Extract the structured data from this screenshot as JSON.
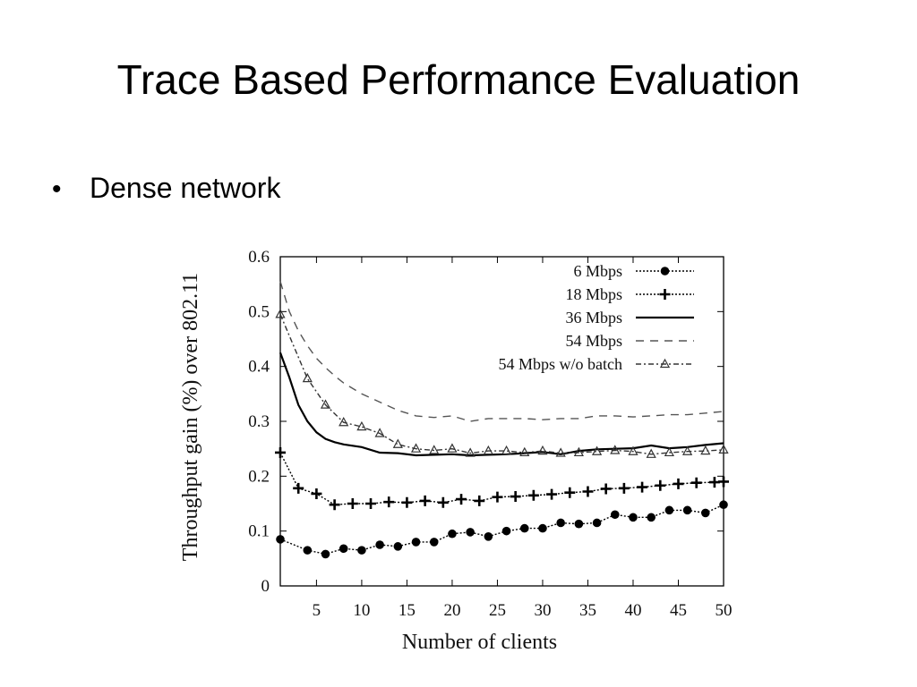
{
  "slide": {
    "title": "Trace Based Performance Evaluation",
    "bullet": "Dense network"
  },
  "chart_data": {
    "type": "line",
    "xlabel": "Number of clients",
    "ylabel": "Throughput gain (%) over 802.11",
    "xlim": [
      1,
      50
    ],
    "ylim": [
      0,
      0.6
    ],
    "xticks": [
      5,
      10,
      15,
      20,
      25,
      30,
      35,
      40,
      45,
      50
    ],
    "yticks": [
      0,
      0.1,
      0.2,
      0.3,
      0.4,
      0.5,
      0.6
    ],
    "ytick_labels": [
      "0",
      "0.1",
      "0.2",
      "0.3",
      "0.4",
      "0.5",
      "0.6"
    ],
    "grid": false,
    "legend_position": "top-right",
    "series": [
      {
        "name": "6 Mbps",
        "color": "#000000",
        "line_style": "dotted",
        "marker": "circle",
        "x": [
          1,
          4,
          6,
          8,
          10,
          12,
          14,
          16,
          18,
          20,
          22,
          24,
          26,
          28,
          30,
          32,
          34,
          36,
          38,
          40,
          42,
          44,
          46,
          48,
          50
        ],
        "y": [
          0.085,
          0.065,
          0.058,
          0.068,
          0.065,
          0.075,
          0.072,
          0.08,
          0.08,
          0.095,
          0.098,
          0.09,
          0.1,
          0.105,
          0.105,
          0.115,
          0.113,
          0.115,
          0.13,
          0.125,
          0.125,
          0.138,
          0.138,
          0.133,
          0.148
        ]
      },
      {
        "name": "18 Mbps",
        "color": "#000000",
        "line_style": "dotted",
        "marker": "plus",
        "x": [
          1,
          3,
          5,
          7,
          9,
          11,
          13,
          15,
          17,
          19,
          21,
          23,
          25,
          27,
          29,
          31,
          33,
          35,
          37,
          39,
          41,
          43,
          45,
          47,
          49,
          50
        ],
        "y": [
          0.243,
          0.178,
          0.168,
          0.148,
          0.15,
          0.15,
          0.153,
          0.152,
          0.155,
          0.152,
          0.158,
          0.155,
          0.162,
          0.163,
          0.165,
          0.167,
          0.17,
          0.172,
          0.177,
          0.178,
          0.18,
          0.183,
          0.186,
          0.188,
          0.189,
          0.19
        ]
      },
      {
        "name": "36 Mbps",
        "color": "#000000",
        "line_style": "solid",
        "marker": "none",
        "x": [
          1,
          2,
          3,
          4,
          5,
          6,
          7,
          8,
          10,
          12,
          14,
          16,
          18,
          20,
          22,
          24,
          26,
          28,
          30,
          32,
          34,
          36,
          38,
          40,
          42,
          44,
          46,
          48,
          50
        ],
        "y": [
          0.425,
          0.38,
          0.33,
          0.3,
          0.28,
          0.268,
          0.262,
          0.258,
          0.253,
          0.243,
          0.242,
          0.238,
          0.239,
          0.24,
          0.238,
          0.239,
          0.24,
          0.242,
          0.244,
          0.24,
          0.246,
          0.249,
          0.25,
          0.251,
          0.256,
          0.251,
          0.253,
          0.257,
          0.26
        ]
      },
      {
        "name": "54 Mbps",
        "color": "#555555",
        "line_style": "dashed",
        "marker": "none",
        "x": [
          1,
          2,
          3,
          4,
          5,
          6,
          7,
          8,
          10,
          12,
          14,
          16,
          18,
          20,
          22,
          24,
          26,
          28,
          30,
          32,
          34,
          36,
          38,
          40,
          42,
          44,
          46,
          48,
          50
        ],
        "y": [
          0.555,
          0.5,
          0.465,
          0.438,
          0.415,
          0.398,
          0.383,
          0.37,
          0.35,
          0.335,
          0.32,
          0.31,
          0.307,
          0.31,
          0.3,
          0.305,
          0.305,
          0.305,
          0.303,
          0.305,
          0.305,
          0.31,
          0.31,
          0.308,
          0.31,
          0.312,
          0.312,
          0.315,
          0.318
        ]
      },
      {
        "name": "54 Mbps w/o batch",
        "color": "#333333",
        "line_style": "dashdot",
        "marker": "triangle",
        "x": [
          1,
          4,
          6,
          8,
          10,
          12,
          14,
          16,
          18,
          20,
          22,
          24,
          26,
          28,
          30,
          32,
          34,
          36,
          38,
          40,
          42,
          44,
          46,
          48,
          50
        ],
        "y": [
          0.495,
          0.378,
          0.33,
          0.298,
          0.29,
          0.278,
          0.258,
          0.25,
          0.247,
          0.25,
          0.242,
          0.246,
          0.246,
          0.243,
          0.246,
          0.242,
          0.243,
          0.245,
          0.247,
          0.245,
          0.24,
          0.243,
          0.245,
          0.246,
          0.248
        ]
      }
    ]
  }
}
